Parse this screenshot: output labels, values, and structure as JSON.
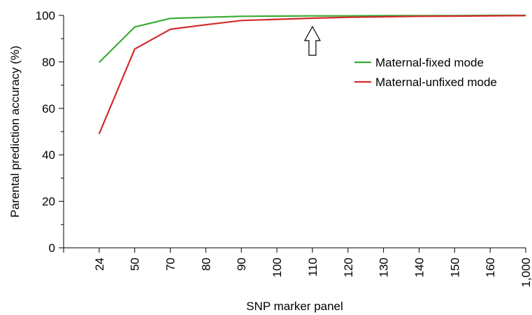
{
  "chart_data": {
    "type": "line",
    "xlabel": "SNP marker panel",
    "ylabel": "Parental prediction accuracy (%)",
    "categories": [
      "24",
      "50",
      "70",
      "80",
      "90",
      "100",
      "110",
      "120",
      "130",
      "140",
      "150",
      "160",
      "1,000"
    ],
    "ylim": [
      0,
      100
    ],
    "yticks": [
      0,
      20,
      40,
      60,
      80,
      100
    ],
    "grid": false,
    "legend_position": "top-right",
    "series": [
      {
        "name": "Maternal-fixed mode",
        "color": "#3aaa35",
        "values": [
          79.8,
          95,
          98.7,
          99.2,
          99.6,
          99.7,
          99.8,
          99.8,
          99.9,
          99.9,
          99.9,
          100,
          100
        ]
      },
      {
        "name": "Maternal-unfixed mode",
        "color": "#d42a2a",
        "values": [
          49,
          85.5,
          94,
          96,
          97.8,
          98.3,
          98.8,
          99.2,
          99.4,
          99.6,
          99.7,
          99.8,
          99.9
        ]
      }
    ],
    "annotation": {
      "type": "up-arrow-icon",
      "category": "110"
    }
  }
}
